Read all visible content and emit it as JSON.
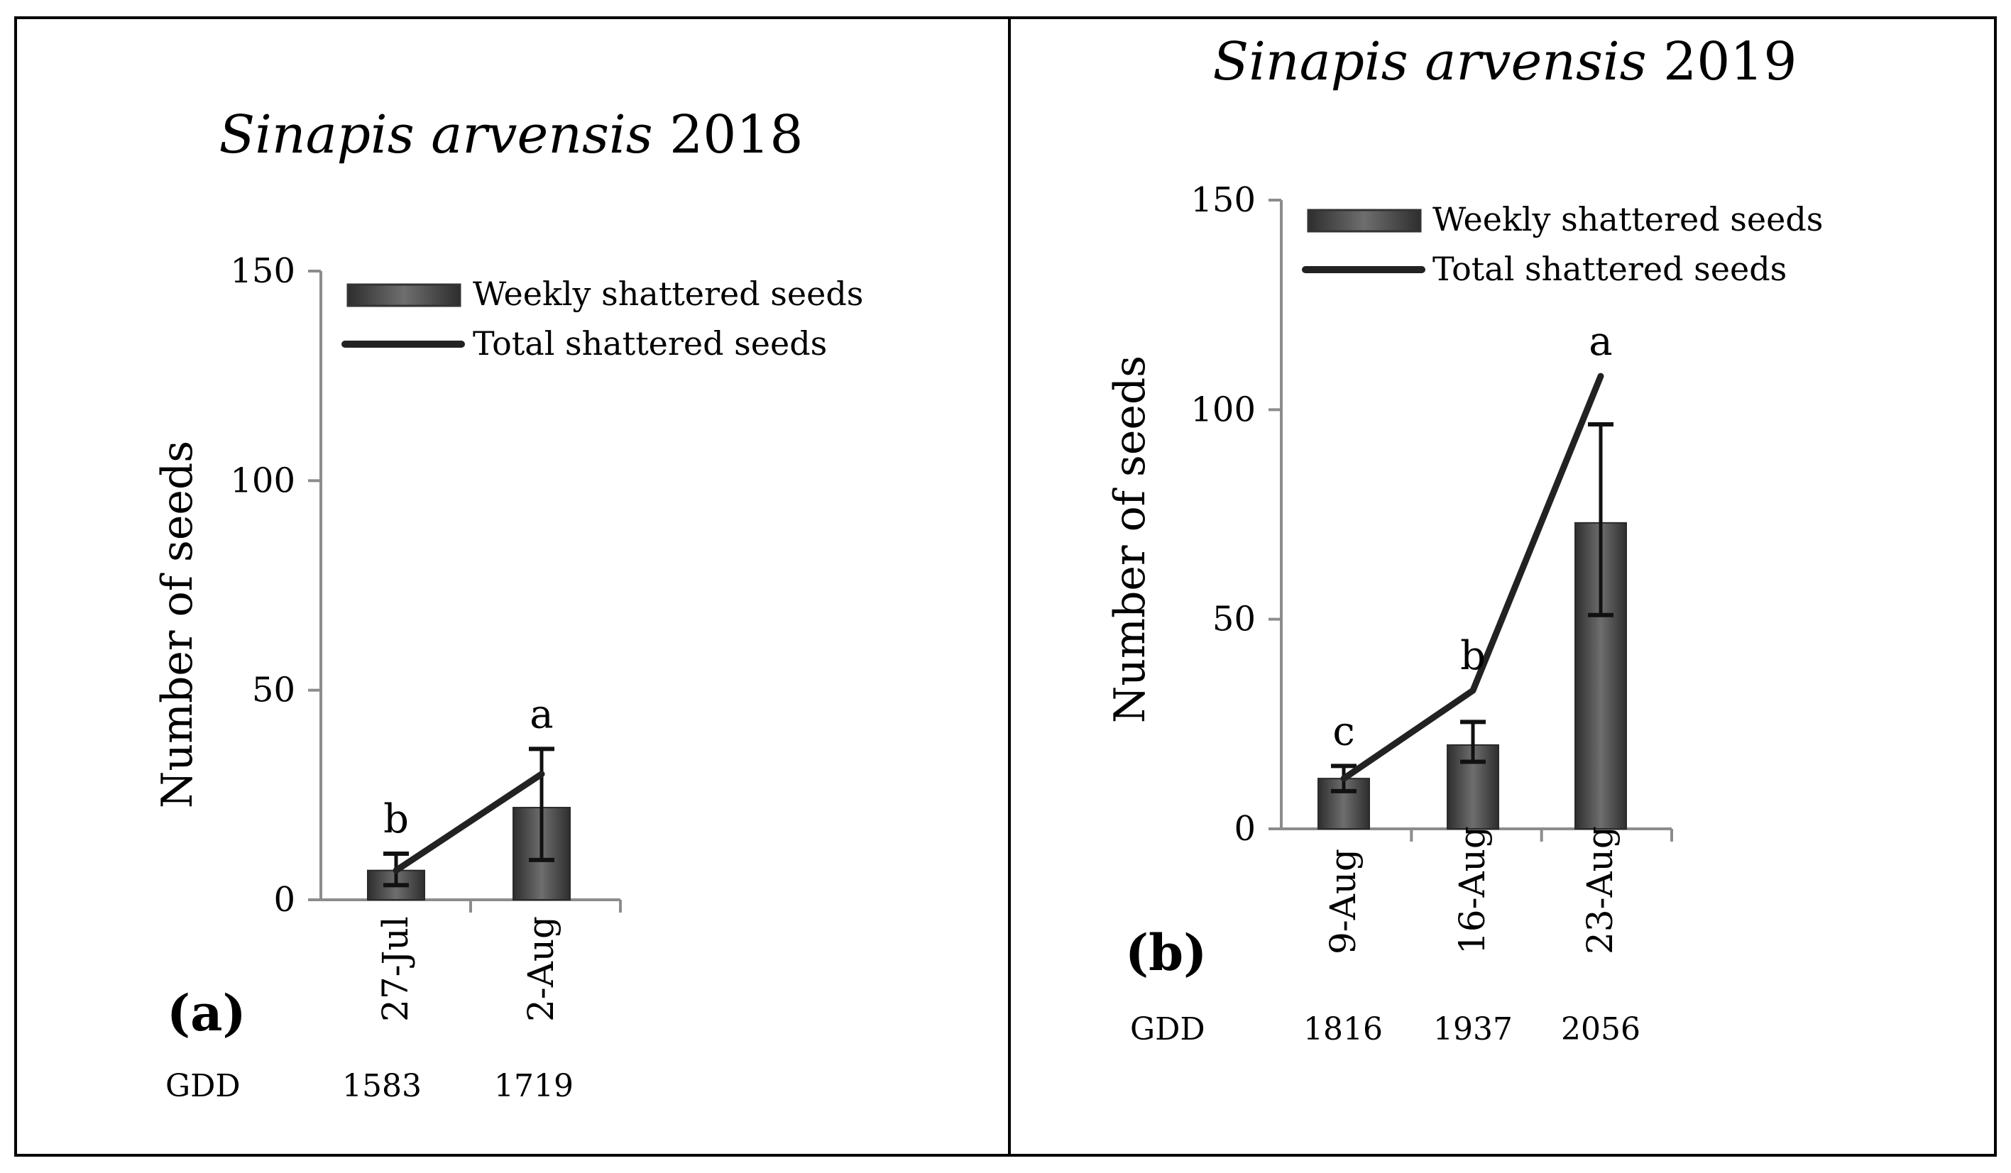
{
  "chart_data": [
    {
      "type": "bar",
      "panel": "(a)",
      "title_species": "Sinapis arvensis",
      "title_year": "2018",
      "xlabel": "",
      "ylabel": "Number of seeds",
      "ylim": [
        0,
        150
      ],
      "yticks": [
        0,
        50,
        100,
        150
      ],
      "categories": [
        "27-Jul",
        "2-Aug"
      ],
      "gdd_label": "GDD",
      "gdd": [
        "1583",
        "1719"
      ],
      "series": [
        {
          "name": "Weekly shattered seeds",
          "kind": "bar",
          "values": [
            7,
            22
          ],
          "error": [
            [
              3.5,
              11
            ],
            [
              9.5,
              36
            ]
          ]
        },
        {
          "name": "Total shattered seeds",
          "kind": "line",
          "values": [
            7,
            30
          ]
        }
      ],
      "significance": [
        "b",
        "a"
      ],
      "legend_position": "top-right"
    },
    {
      "type": "bar",
      "panel": "(b)",
      "title_species": "Sinapis arvensis",
      "title_year": "2019",
      "xlabel": "",
      "ylabel": "Number of seeds",
      "ylim": [
        0,
        150
      ],
      "yticks": [
        0,
        50,
        100,
        150
      ],
      "categories": [
        "9-Aug",
        "16-Aug",
        "23-Aug"
      ],
      "gdd_label": "GDD",
      "gdd": [
        "1816",
        "1937",
        "2056"
      ],
      "series": [
        {
          "name": "Weekly shattered seeds",
          "kind": "bar",
          "values": [
            12,
            20,
            73
          ],
          "error": [
            [
              9,
              15
            ],
            [
              16,
              25.5
            ],
            [
              51,
              96.5
            ]
          ]
        },
        {
          "name": "Total shattered seeds",
          "kind": "line",
          "values": [
            12,
            33,
            108
          ]
        }
      ],
      "significance": [
        "c",
        "b",
        "a"
      ],
      "legend_position": "top-right"
    }
  ]
}
